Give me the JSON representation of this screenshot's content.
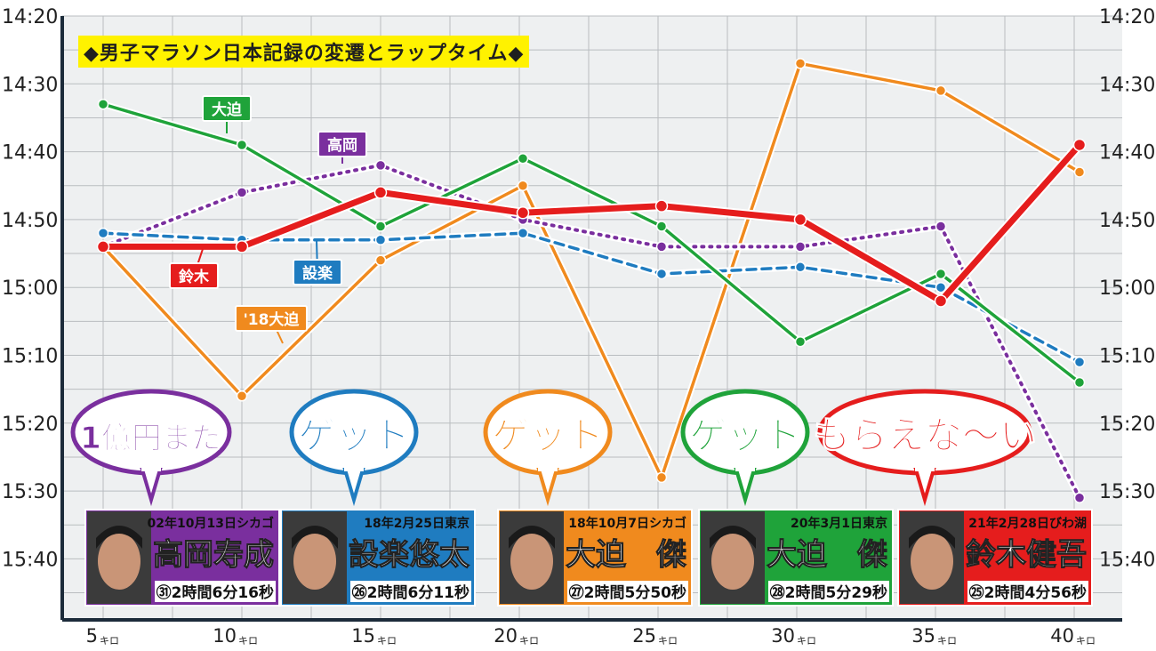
{
  "chart_data": {
    "type": "line",
    "title": "◆男子マラソン日本記録の変遷とラップタイム◆",
    "x_ticks": [
      "5",
      "10",
      "15",
      "20",
      "25",
      "30",
      "35",
      "40"
    ],
    "x_unit": "キロ",
    "y_ticks": [
      "14:20",
      "14:30",
      "14:40",
      "14:50",
      "15:00",
      "15:10",
      "15:20",
      "15:30",
      "15:40"
    ],
    "y_seconds_range": [
      860,
      945
    ],
    "series": [
      {
        "name": "大迫",
        "color": "#1fa33a",
        "style": "solid",
        "values_sec": [
          873,
          879,
          891,
          881,
          891,
          908,
          898,
          914
        ]
      },
      {
        "name": "高岡",
        "color": "#7a2f9e",
        "style": "dotted",
        "values_sec": [
          894,
          886,
          882,
          890,
          894,
          894,
          891,
          931
        ]
      },
      {
        "name": "設楽",
        "color": "#1f7cc0",
        "style": "dashed",
        "values_sec": [
          892,
          893,
          893,
          892,
          898,
          897,
          900,
          911
        ]
      },
      {
        "name": "'18大迫",
        "color": "#f08a1e",
        "style": "solid",
        "values_sec": [
          894,
          916,
          896,
          885,
          928,
          867,
          871,
          883
        ]
      },
      {
        "name": "鈴木",
        "color": "#e51d1d",
        "style": "solid-thick",
        "values_sec": [
          894,
          894,
          886,
          889,
          888,
          890,
          902,
          879
        ]
      }
    ],
    "bubbles": [
      {
        "text": "1億円まだ",
        "color": "#7a2f9e"
      },
      {
        "text": "ゲット",
        "color": "#1f7cc0"
      },
      {
        "text": "ゲット",
        "color": "#f08a1e"
      },
      {
        "text": "ゲット",
        "color": "#1fa33a"
      },
      {
        "text": "もらえな〜い",
        "color": "#e51d1d"
      }
    ],
    "records": [
      {
        "date": "02年10月13日シカゴ",
        "name": "高岡寿成",
        "age": "㉛",
        "time": "2時間6分16秒",
        "color": "#7a2f9e"
      },
      {
        "date": "18年2月25日東京",
        "name": "設楽悠太",
        "age": "㉖",
        "time": "2時間6分11秒",
        "color": "#1f7cc0"
      },
      {
        "date": "18年10月7日シカゴ",
        "name": "大迫　傑",
        "age": "㉗",
        "time": "2時間5分50秒",
        "color": "#f08a1e"
      },
      {
        "date": "20年3月1日東京",
        "name": "大迫　傑",
        "age": "㉘",
        "time": "2時間5分29秒",
        "color": "#1fa33a"
      },
      {
        "date": "21年2月28日びわ湖",
        "name": "鈴木健吾",
        "age": "㉕",
        "time": "2時間4分56秒",
        "color": "#e51d1d"
      }
    ]
  }
}
